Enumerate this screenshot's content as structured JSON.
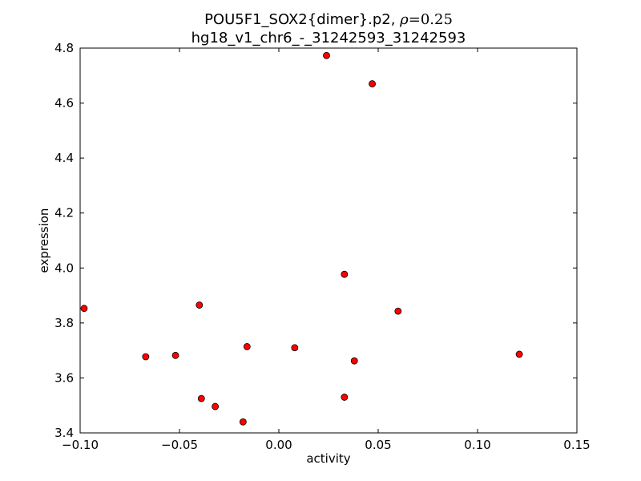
{
  "chart_data": {
    "type": "scatter",
    "title": {
      "prefix": "POU5F1_SOX2{dimer}.p2, ",
      "rho_symbol": "ρ",
      "rho_value": "=0.25",
      "line2": "hg18_v1_chr6_-_31242593_31242593"
    },
    "xlabel": "activity",
    "ylabel": "expression",
    "xlim": [
      -0.1,
      0.15
    ],
    "ylim": [
      3.4,
      4.8
    ],
    "xticks": [
      -0.1,
      -0.05,
      0.0,
      0.05,
      0.1,
      0.15
    ],
    "xtick_labels": [
      "−0.10",
      "−0.05",
      "0.00",
      "0.05",
      "0.10",
      "0.15"
    ],
    "yticks": [
      3.4,
      3.6,
      3.8,
      4.0,
      4.2,
      4.4,
      4.6,
      4.8
    ],
    "ytick_labels": [
      "3.4",
      "3.6",
      "3.8",
      "4.0",
      "4.2",
      "4.4",
      "4.6",
      "4.8"
    ],
    "grid": false,
    "marker_color": "#ff0000",
    "marker_edge_color": "#000000",
    "points": [
      {
        "x": -0.098,
        "y": 3.853
      },
      {
        "x": -0.067,
        "y": 3.677
      },
      {
        "x": -0.052,
        "y": 3.682
      },
      {
        "x": -0.04,
        "y": 3.865
      },
      {
        "x": -0.039,
        "y": 3.525
      },
      {
        "x": -0.032,
        "y": 3.496
      },
      {
        "x": -0.018,
        "y": 3.44
      },
      {
        "x": -0.016,
        "y": 3.714
      },
      {
        "x": 0.008,
        "y": 3.71
      },
      {
        "x": 0.024,
        "y": 4.773
      },
      {
        "x": 0.033,
        "y": 3.977
      },
      {
        "x": 0.033,
        "y": 3.53
      },
      {
        "x": 0.038,
        "y": 3.662
      },
      {
        "x": 0.047,
        "y": 4.67
      },
      {
        "x": 0.06,
        "y": 3.843
      },
      {
        "x": 0.121,
        "y": 3.686
      }
    ]
  }
}
